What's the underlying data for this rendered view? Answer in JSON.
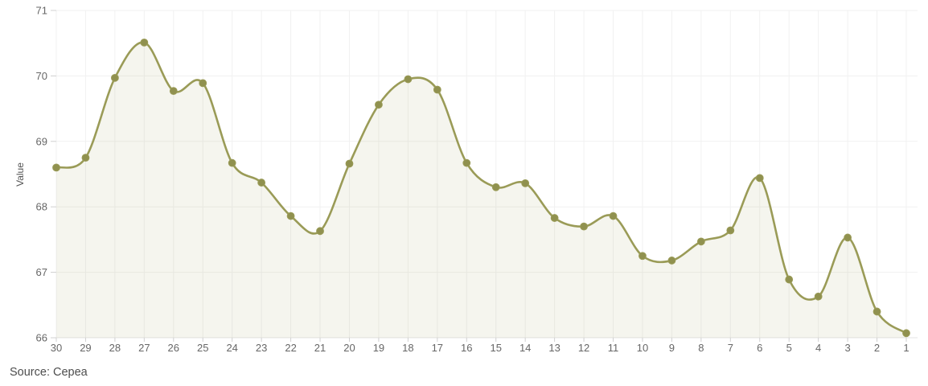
{
  "page": {
    "background": "#ffffff"
  },
  "footer": {
    "source": "Source: Cepea"
  },
  "chart_data": {
    "type": "area",
    "title": "",
    "xlabel": "",
    "ylabel": "Value",
    "categories": [
      "30",
      "29",
      "28",
      "27",
      "26",
      "25",
      "24",
      "23",
      "22",
      "21",
      "20",
      "19",
      "18",
      "17",
      "16",
      "15",
      "14",
      "13",
      "12",
      "11",
      "10",
      "9",
      "8",
      "7",
      "6",
      "5",
      "4",
      "3",
      "2",
      "1"
    ],
    "values": [
      68.6,
      68.75,
      69.97,
      70.51,
      69.77,
      69.89,
      68.67,
      68.37,
      67.86,
      67.63,
      68.66,
      69.56,
      69.95,
      69.79,
      68.67,
      68.3,
      68.36,
      67.83,
      67.7,
      67.86,
      67.25,
      67.18,
      67.47,
      67.64,
      68.44,
      66.89,
      66.63,
      67.53,
      66.4,
      66.07
    ],
    "ylim": [
      66,
      71
    ],
    "yticks": [
      66,
      67,
      68,
      69,
      70,
      71
    ],
    "grid": true,
    "legend": false,
    "smooth": true,
    "colors": {
      "line": "#9a9b57",
      "marker": "#90914f",
      "area_fill": "rgba(155,156,88,0.10)",
      "gridline": "#f1f1f1",
      "axis_line": "#e4e4e4",
      "tick": "#d0d0d0",
      "tick_label": "#666666",
      "axis_title": "#555555"
    }
  }
}
